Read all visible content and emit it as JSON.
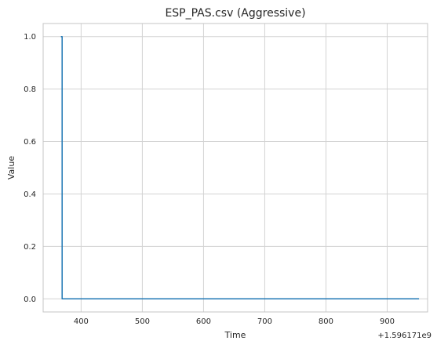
{
  "chart_data": {
    "type": "line",
    "title": "ESP_PAS.csv (Aggressive)",
    "xlabel": "Time",
    "ylabel": "Value",
    "x_offset_label": "+1.596171e9",
    "xlim": [
      338,
      966
    ],
    "ylim": [
      -0.05,
      1.05
    ],
    "xticks": [
      400,
      500,
      600,
      700,
      800,
      900
    ],
    "yticks": [
      0.0,
      0.2,
      0.4,
      0.6,
      0.8,
      1.0
    ],
    "ytick_labels": [
      "0.0",
      "0.2",
      "0.4",
      "0.6",
      "0.8",
      "1.0"
    ],
    "grid": true,
    "series": [
      {
        "color": "#1f77b4",
        "x": [
          367,
          369,
          369,
          952
        ],
        "y": [
          1,
          1,
          0,
          0
        ]
      }
    ]
  }
}
